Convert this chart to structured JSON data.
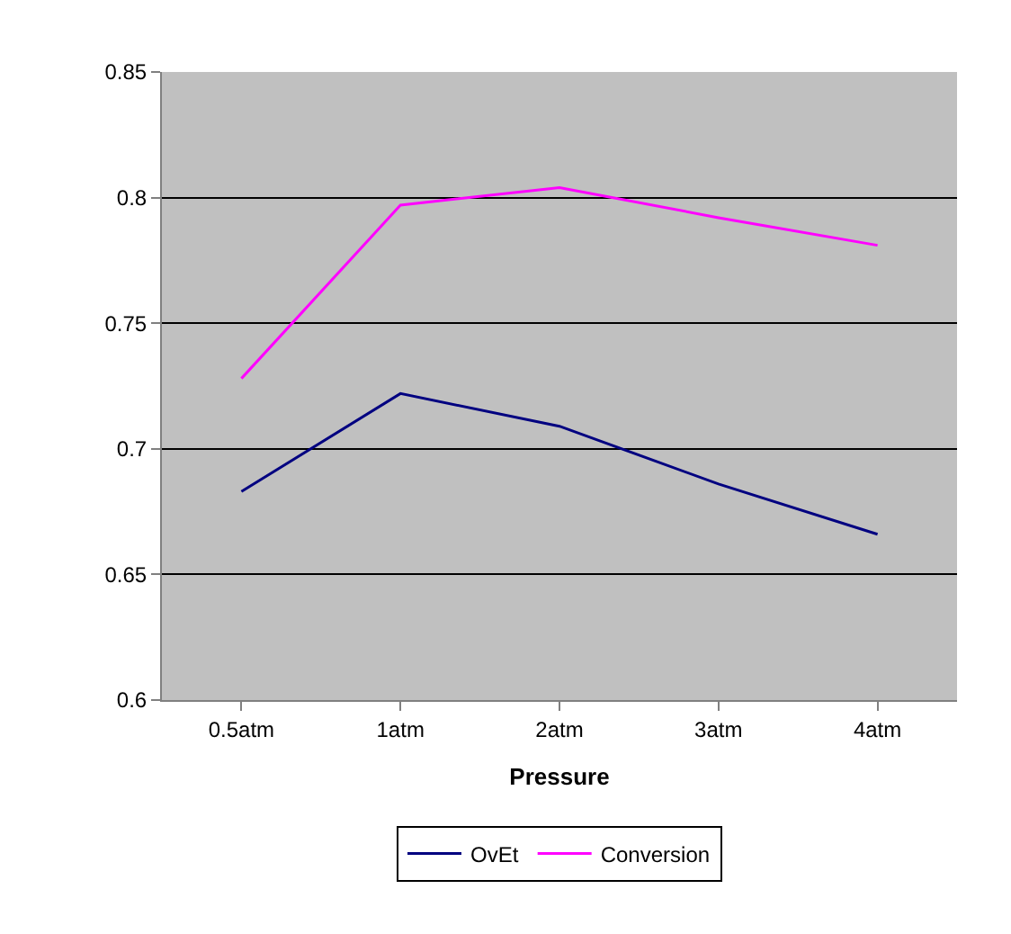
{
  "chart_data": {
    "type": "line",
    "xlabel": "Pressure",
    "categories": [
      "0.5atm",
      "1atm",
      "2atm",
      "3atm",
      "4atm"
    ],
    "series": [
      {
        "name": "OvEt",
        "color": "#000080",
        "values": [
          0.683,
          0.722,
          0.709,
          0.686,
          0.666
        ]
      },
      {
        "name": "Conversion",
        "color": "#ff00ff",
        "values": [
          0.728,
          0.797,
          0.804,
          0.792,
          0.781
        ]
      }
    ],
    "ylim": [
      0.6,
      0.85
    ],
    "yticks": [
      0.6,
      0.65,
      0.7,
      0.75,
      0.8,
      0.85
    ],
    "grid": "y",
    "legend": "bottom",
    "marker": "none",
    "line_style": "solid"
  }
}
